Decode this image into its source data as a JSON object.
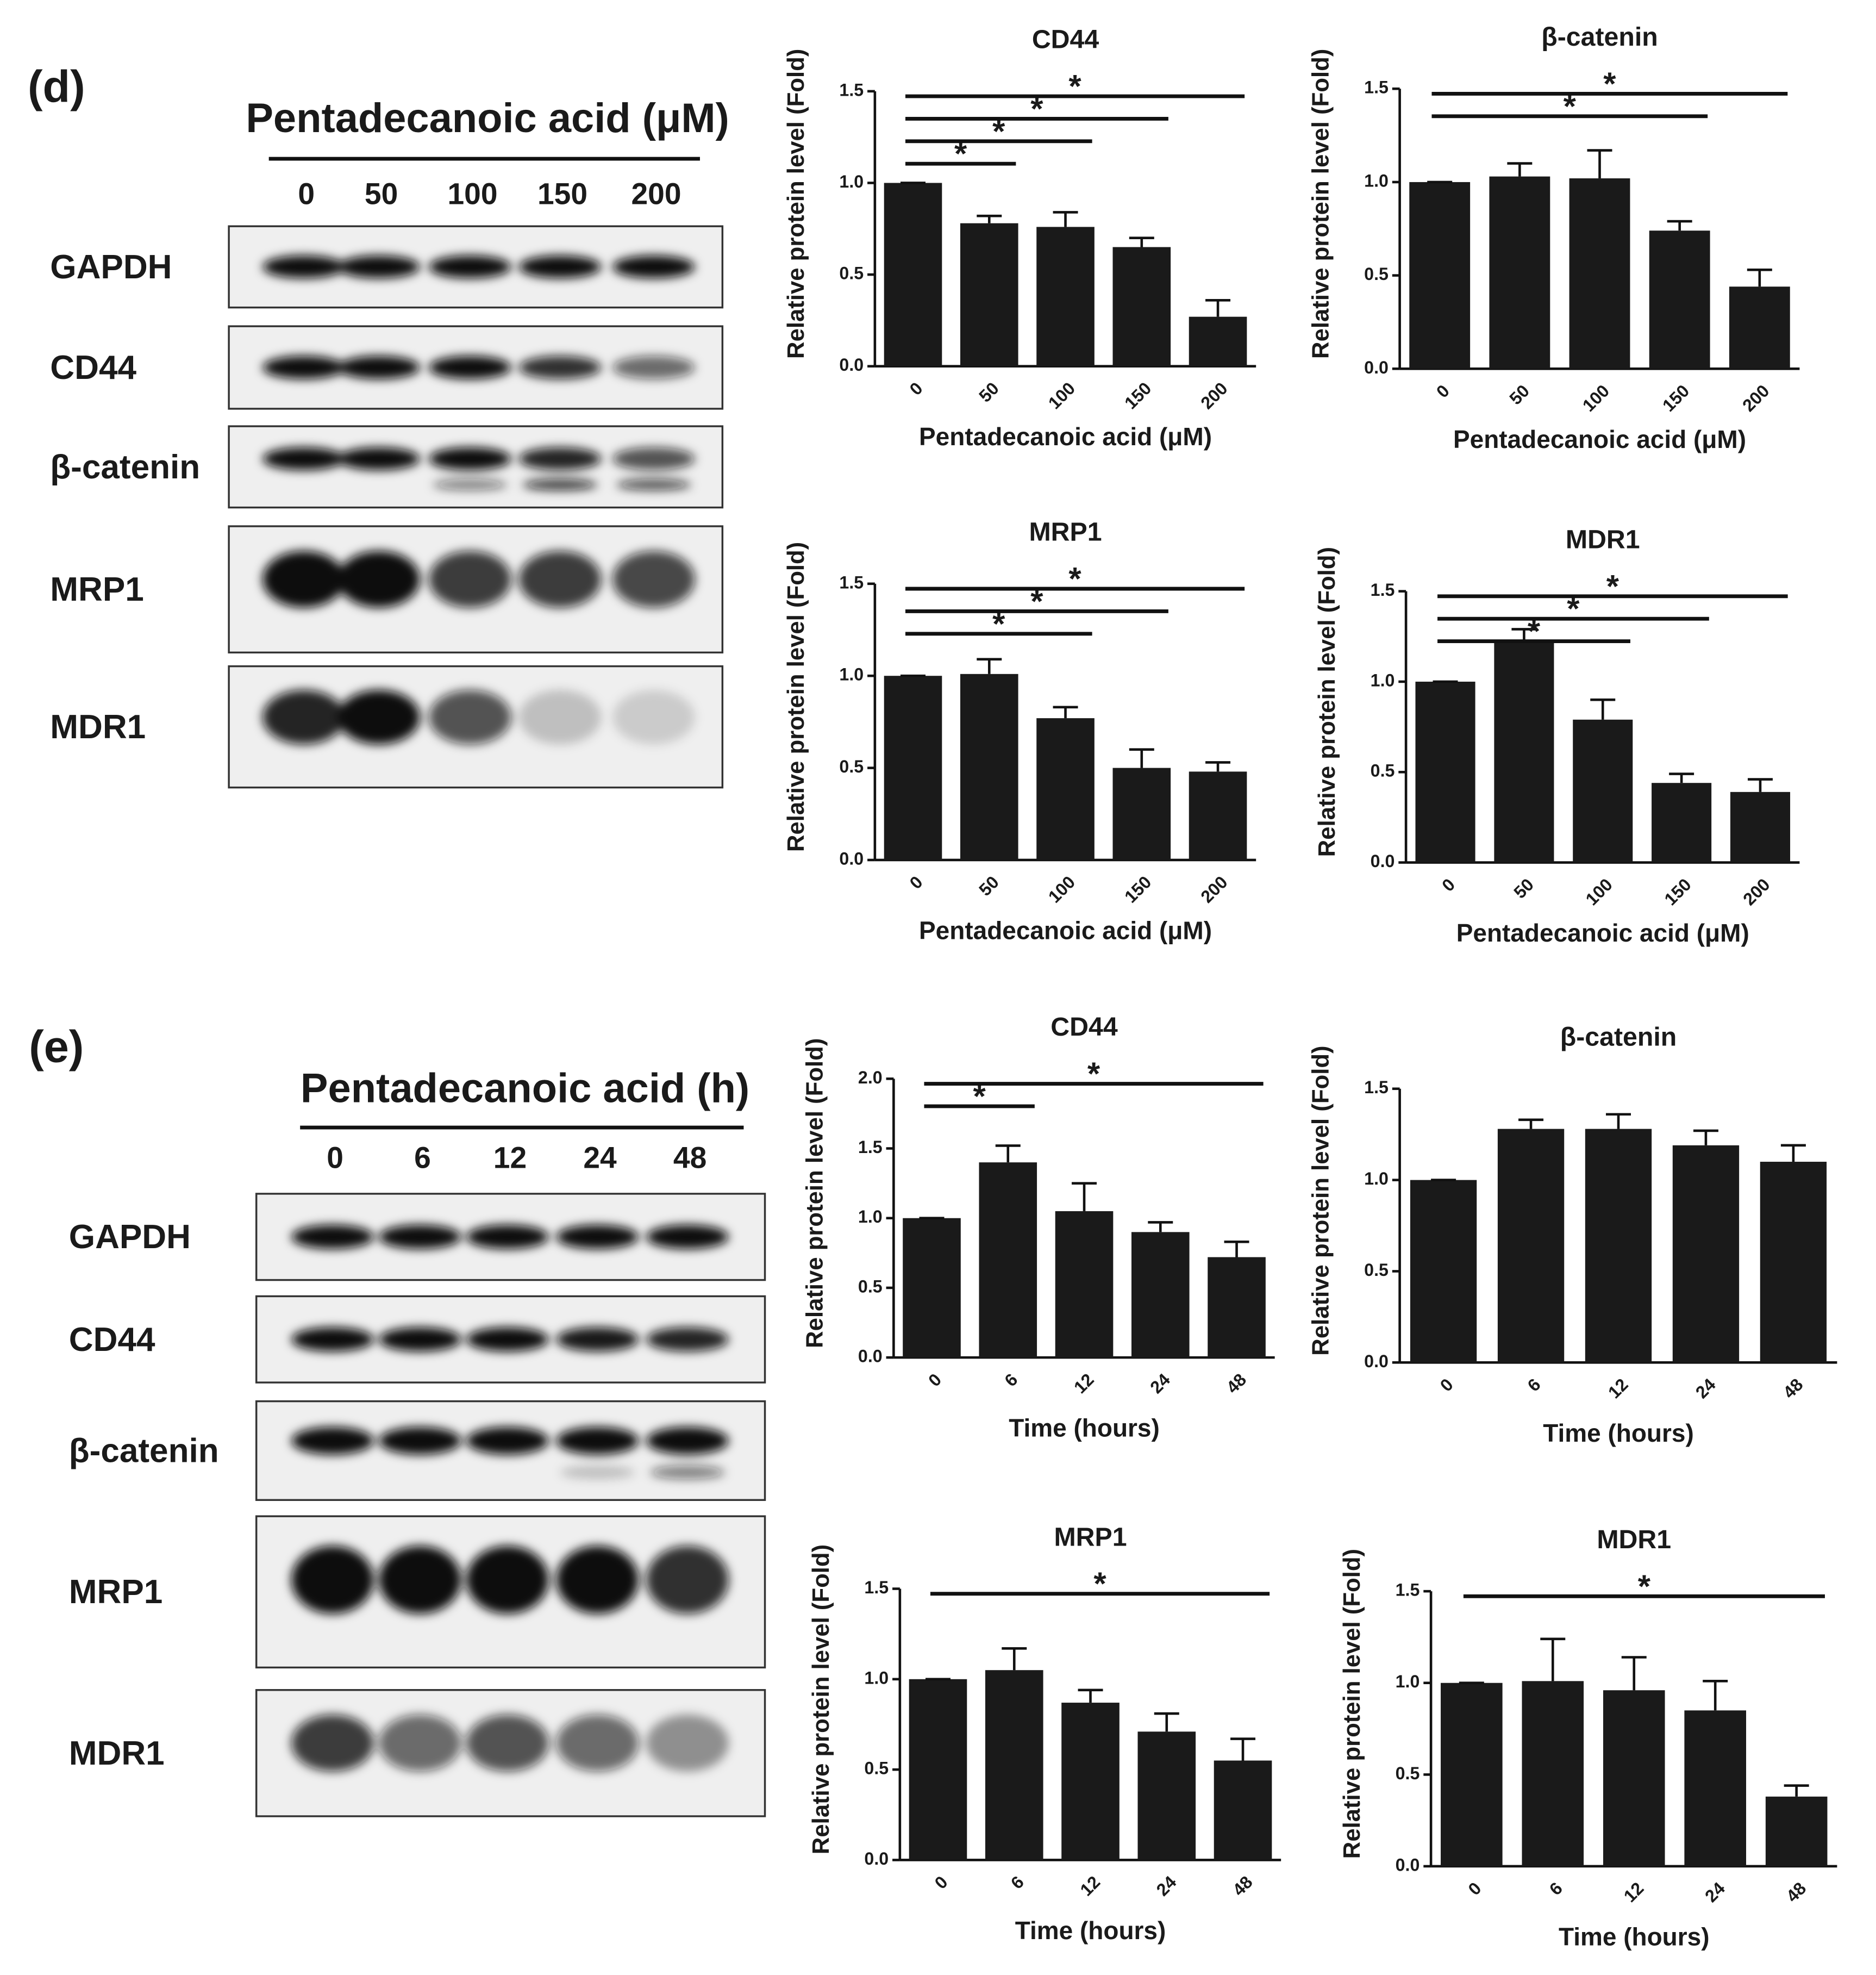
{
  "panels": [
    {
      "label": "(d)",
      "title": "Pentadecanoic acid (μM)",
      "lanes": [
        "0",
        "50",
        "100",
        "150",
        "200"
      ],
      "proteins": [
        "GAPDH",
        "CD44",
        "β-catenin",
        "MRP1",
        "MDR1"
      ]
    },
    {
      "label": "(e)",
      "title": "Pentadecanoic acid (h)",
      "lanes": [
        "0",
        "6",
        "12",
        "24",
        "48"
      ],
      "proteins": [
        "GAPDH",
        "CD44",
        "β-catenin",
        "MRP1",
        "MDR1"
      ]
    }
  ],
  "chart_data": [
    {
      "type": "bar",
      "title": "CD44",
      "xlabel": "Pentadecanoic acid (μM)",
      "ylabel": "Relative protein level (Fold)",
      "color": "#1a1a1a",
      "categories": [
        "0",
        "50",
        "100",
        "150",
        "200"
      ],
      "values": [
        1.0,
        0.78,
        0.76,
        0.65,
        0.27
      ],
      "errors": [
        0,
        0.04,
        0.08,
        0.05,
        0.09
      ],
      "ylim": [
        0,
        1.5
      ],
      "yticks": [
        {
          "value": 0,
          "label": "0.0"
        },
        {
          "value": 0.5,
          "label": "0.5"
        },
        {
          "value": 1,
          "label": "1.0"
        },
        {
          "value": 1.5,
          "label": "1.5"
        }
      ],
      "significance": [
        {
          "from": "0",
          "to": "50",
          "label": "*"
        },
        {
          "from": "0",
          "to": "100",
          "label": "*"
        },
        {
          "from": "0",
          "to": "150",
          "label": "*"
        },
        {
          "from": "0",
          "to": "200",
          "label": "*"
        }
      ]
    },
    {
      "type": "bar",
      "title": "β-catenin",
      "xlabel": "Pentadecanoic acid (μM)",
      "ylabel": "Relative protein level (Fold)",
      "color": "#1a1a1a",
      "categories": [
        "0",
        "50",
        "100",
        "150",
        "200"
      ],
      "values": [
        1.0,
        1.03,
        1.02,
        0.74,
        0.44
      ],
      "errors": [
        0,
        0.07,
        0.15,
        0.05,
        0.09
      ],
      "ylim": [
        0,
        1.5
      ],
      "yticks": [
        {
          "value": 0,
          "label": "0.0"
        },
        {
          "value": 0.5,
          "label": "0.5"
        },
        {
          "value": 1,
          "label": "1.0"
        },
        {
          "value": 1.5,
          "label": "1.5"
        }
      ],
      "significance": [
        {
          "from": "0",
          "to": "150",
          "label": "*"
        },
        {
          "from": "0",
          "to": "200",
          "label": "*"
        }
      ]
    },
    {
      "type": "bar",
      "title": "MRP1",
      "xlabel": "Pentadecanoic acid (μM)",
      "ylabel": "Relative protein level (Fold)",
      "color": "#1a1a1a",
      "categories": [
        "0",
        "50",
        "100",
        "150",
        "200"
      ],
      "values": [
        1.0,
        1.01,
        0.77,
        0.5,
        0.48
      ],
      "errors": [
        0,
        0.08,
        0.06,
        0.1,
        0.05
      ],
      "ylim": [
        0,
        1.5
      ],
      "yticks": [
        {
          "value": 0,
          "label": "0.0"
        },
        {
          "value": 0.5,
          "label": "0.5"
        },
        {
          "value": 1,
          "label": "1.0"
        },
        {
          "value": 1.5,
          "label": "1.5"
        }
      ],
      "significance": [
        {
          "from": "0",
          "to": "100",
          "label": "*"
        },
        {
          "from": "0",
          "to": "150",
          "label": "*"
        },
        {
          "from": "0",
          "to": "200",
          "label": "*"
        }
      ]
    },
    {
      "type": "bar",
      "title": "MDR1",
      "xlabel": "Pentadecanoic acid (μM)",
      "ylabel": "Relative protein level (Fold)",
      "color": "#1a1a1a",
      "categories": [
        "0",
        "50",
        "100",
        "150",
        "200"
      ],
      "values": [
        1.0,
        1.23,
        0.79,
        0.44,
        0.39
      ],
      "errors": [
        0,
        0.06,
        0.11,
        0.05,
        0.07
      ],
      "ylim": [
        0,
        1.5
      ],
      "yticks": [
        {
          "value": 0,
          "label": "0.0"
        },
        {
          "value": 0.5,
          "label": "0.5"
        },
        {
          "value": 1,
          "label": "1.0"
        },
        {
          "value": 1.5,
          "label": "1.5"
        }
      ],
      "significance": [
        {
          "from": "0",
          "to": "100",
          "label": "*"
        },
        {
          "from": "0",
          "to": "150",
          "label": "*"
        },
        {
          "from": "0",
          "to": "200",
          "label": "*"
        }
      ]
    },
    {
      "type": "bar",
      "title": "CD44",
      "xlabel": "Time (hours)",
      "ylabel": "Relative protein level (Fold)",
      "color": "#1a1a1a",
      "categories": [
        "0",
        "6",
        "12",
        "24",
        "48"
      ],
      "values": [
        1.0,
        1.4,
        1.05,
        0.9,
        0.72
      ],
      "errors": [
        0,
        0.12,
        0.2,
        0.07,
        0.11
      ],
      "ylim": [
        0,
        2
      ],
      "yticks": [
        {
          "value": 0,
          "label": "0.0"
        },
        {
          "value": 0.5,
          "label": "0.5"
        },
        {
          "value": 1,
          "label": "1.0"
        },
        {
          "value": 1.5,
          "label": "1.5"
        },
        {
          "value": 2,
          "label": "2.0"
        }
      ],
      "significance": [
        {
          "from": "0",
          "to": "6",
          "label": "*"
        },
        {
          "from": "0",
          "to": "48",
          "label": "*"
        }
      ]
    },
    {
      "type": "bar",
      "title": "β-catenin",
      "xlabel": "Time (hours)",
      "ylabel": "Relative protein level (Fold)",
      "color": "#1a1a1a",
      "categories": [
        "0",
        "6",
        "12",
        "24",
        "48"
      ],
      "values": [
        1.0,
        1.28,
        1.28,
        1.19,
        1.1
      ],
      "errors": [
        0,
        0.05,
        0.08,
        0.08,
        0.09
      ],
      "ylim": [
        0,
        1.5
      ],
      "yticks": [
        {
          "value": 0,
          "label": "0.0"
        },
        {
          "value": 0.5,
          "label": "0.5"
        },
        {
          "value": 1,
          "label": "1.0"
        },
        {
          "value": 1.5,
          "label": "1.5"
        }
      ],
      "significance": []
    },
    {
      "type": "bar",
      "title": "MRP1",
      "xlabel": "Time (hours)",
      "ylabel": "Relative protein level (Fold)",
      "color": "#1a1a1a",
      "categories": [
        "0",
        "6",
        "12",
        "24",
        "48"
      ],
      "values": [
        1.0,
        1.05,
        0.87,
        0.71,
        0.55
      ],
      "errors": [
        0,
        0.12,
        0.07,
        0.1,
        0.12
      ],
      "ylim": [
        0,
        1.5
      ],
      "yticks": [
        {
          "value": 0,
          "label": "0.0"
        },
        {
          "value": 0.5,
          "label": "0.5"
        },
        {
          "value": 1,
          "label": "1.0"
        },
        {
          "value": 1.5,
          "label": "1.5"
        }
      ],
      "significance": [
        {
          "from": "0",
          "to": "48",
          "label": "*"
        }
      ]
    },
    {
      "type": "bar",
      "title": "MDR1",
      "xlabel": "Time (hours)",
      "ylabel": "Relative protein level (Fold)",
      "color": "#1a1a1a",
      "categories": [
        "0",
        "6",
        "12",
        "24",
        "48"
      ],
      "values": [
        1.0,
        1.01,
        0.96,
        0.85,
        0.38
      ],
      "errors": [
        0,
        0.23,
        0.18,
        0.16,
        0.06
      ],
      "ylim": [
        0,
        1.5
      ],
      "yticks": [
        {
          "value": 0,
          "label": "0.0"
        },
        {
          "value": 0.5,
          "label": "0.5"
        },
        {
          "value": 1,
          "label": "1.0"
        },
        {
          "value": 1.5,
          "label": "1.5"
        }
      ],
      "significance": [
        {
          "from": "0",
          "to": "48",
          "label": "*"
        }
      ]
    }
  ]
}
